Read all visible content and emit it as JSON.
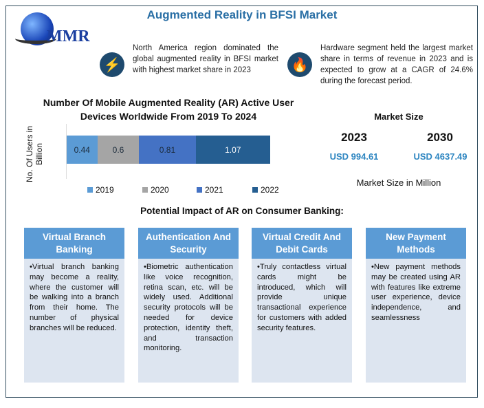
{
  "title": "Augmented Reality in BFSI Market",
  "logo_text": "MMR",
  "highlights": [
    {
      "icon": "lightning-icon",
      "text": "North America region dominated the global augmented reality in BFSI market with highest market share in 2023"
    },
    {
      "icon": "flame-icon",
      "text": "Hardware segment held the largest market share in terms of revenue in 2023 and is expected to grow at a CAGR of 24.6% during the forecast period."
    }
  ],
  "chart_data": {
    "type": "bar",
    "stacked": true,
    "orientation": "horizontal",
    "title": "Number Of Mobile Augmented Reality (AR) Active User Devices Worldwide From 2019 To 2024",
    "ylabel": "No. Of Users in Billion",
    "xlabel": "",
    "series": [
      {
        "name": "2019",
        "values": [
          0.44
        ],
        "label": "0.44",
        "color": "#5b9bd5"
      },
      {
        "name": "2020",
        "values": [
          0.6
        ],
        "label": "0.6",
        "color": "#a5a5a5"
      },
      {
        "name": "2021",
        "values": [
          0.81
        ],
        "label": "0.81",
        "color": "#4472c4"
      },
      {
        "name": "2022",
        "values": [
          1.07
        ],
        "label": "1.07",
        "color": "#255e91"
      }
    ],
    "legend": "bottom"
  },
  "market_size": {
    "title": "Market Size",
    "years": [
      "2023",
      "2030"
    ],
    "values": [
      "USD 994.61",
      "USD 4637.49"
    ],
    "note": "Market Size in Million",
    "value_color": "#2e86c1"
  },
  "impact_title": "Potential Impact of AR on Consumer Banking:",
  "cards": [
    {
      "title": "Virtual Branch Banking",
      "text": "•Virtual branch banking may become a reality, where the customer will be walking into a branch from their home. The number of physical branches will be reduced."
    },
    {
      "title": "Authentication And Security",
      "text": "•Biometric authentication like voice recognition, retina scan, etc. will be widely used. Additional security protocols will be needed for device protection, identity theft, and transaction monitoring."
    },
    {
      "title": "Virtual Credit And Debit Cards",
      "text": "•Truly contactless virtual cards might be introduced, which will provide unique transactional experience for customers with added security features."
    },
    {
      "title": "New Payment Methods",
      "text": "•New payment methods may be created using AR with features like extreme user experience, device independence, and seamlessness"
    }
  ]
}
